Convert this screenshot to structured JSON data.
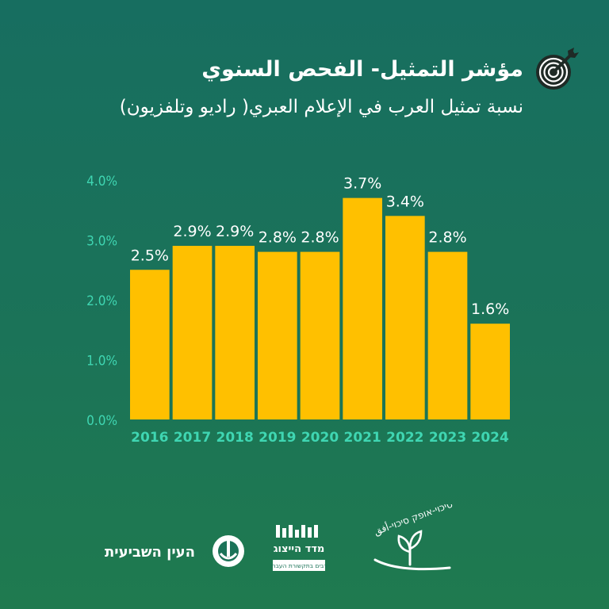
{
  "header": {
    "title": "مؤشر التمثيل- الفحص السنوي",
    "subtitle": "نسبة تمثيل العرب في الإعلام العبري( راديو وتلفزيون)"
  },
  "colors": {
    "bar": "#ffc000",
    "axis_text": "#3fd6b2",
    "value_label": "#ffffff",
    "icon": "#1f2a26"
  },
  "chart_data": {
    "type": "bar",
    "title": "مؤشر التمثيل- الفحص السنوي",
    "subtitle": "نسبة تمثيل العرب في الإعلام العبري( راديو وتلفزيون)",
    "categories": [
      "2016",
      "2017",
      "2018",
      "2019",
      "2020",
      "2021",
      "2022",
      "2023",
      "2024"
    ],
    "values": [
      2.5,
      2.9,
      2.9,
      2.8,
      2.8,
      3.7,
      3.4,
      2.8,
      1.6
    ],
    "value_labels": [
      "2.5%",
      "2.9%",
      "2.9%",
      "2.8%",
      "2.8%",
      "3.7%",
      "3.4%",
      "2.8%",
      "1.6%"
    ],
    "y_ticks": [
      "0.0%",
      "1.0%",
      "2.0%",
      "3.0%",
      "4.0%"
    ],
    "ylim": [
      0,
      4
    ],
    "unit": "%",
    "grid": false,
    "legend": "none"
  },
  "footer": {
    "logo_right_text": "סיכוי-אופק סיכוי-أفق",
    "logo_center_title": "מדד הייצוג",
    "logo_center_sub": "ערבים בתקשורת העברית",
    "logo_left_text": "העין השביעית"
  }
}
